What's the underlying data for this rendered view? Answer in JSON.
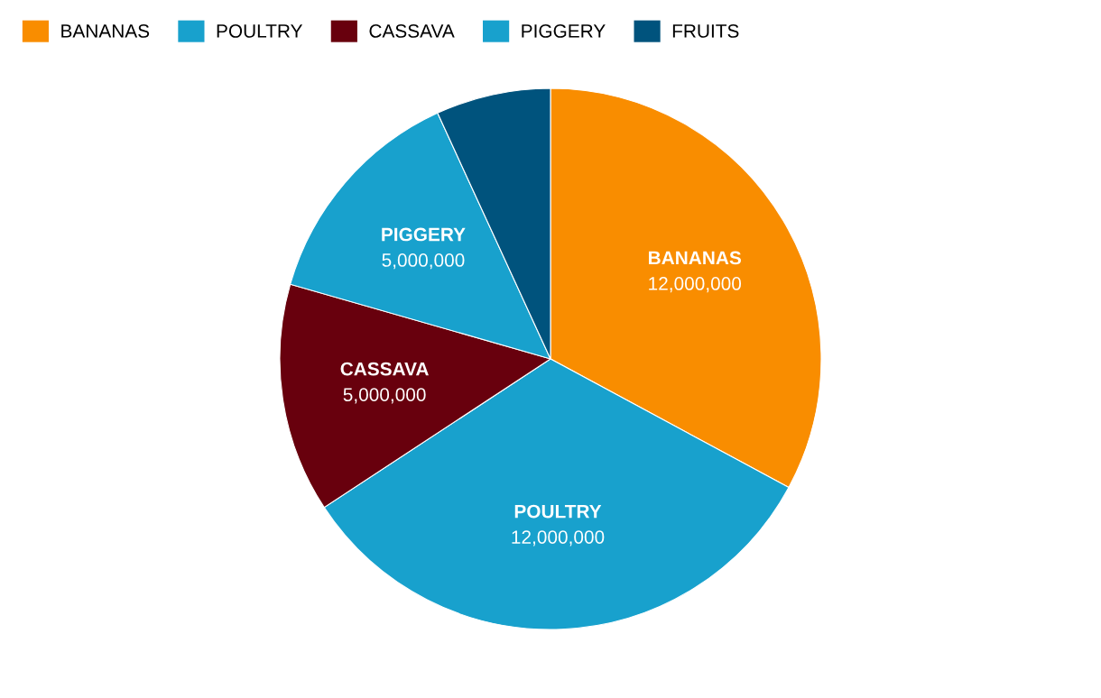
{
  "chart_data": {
    "type": "pie",
    "categories": [
      "BANANAS",
      "POULTRY",
      "CASSAVA",
      "PIGGERY",
      "FRUITS"
    ],
    "values": [
      12000000,
      12000000,
      5000000,
      5000000,
      2500000
    ],
    "colors": [
      "#f98d00",
      "#18a1cd",
      "#68000d",
      "#18a1cd",
      "#00537d"
    ],
    "value_labels": [
      "12,000,000",
      "12,000,000",
      "5,000,000",
      "5,000,000",
      null
    ],
    "legend": "top left"
  }
}
